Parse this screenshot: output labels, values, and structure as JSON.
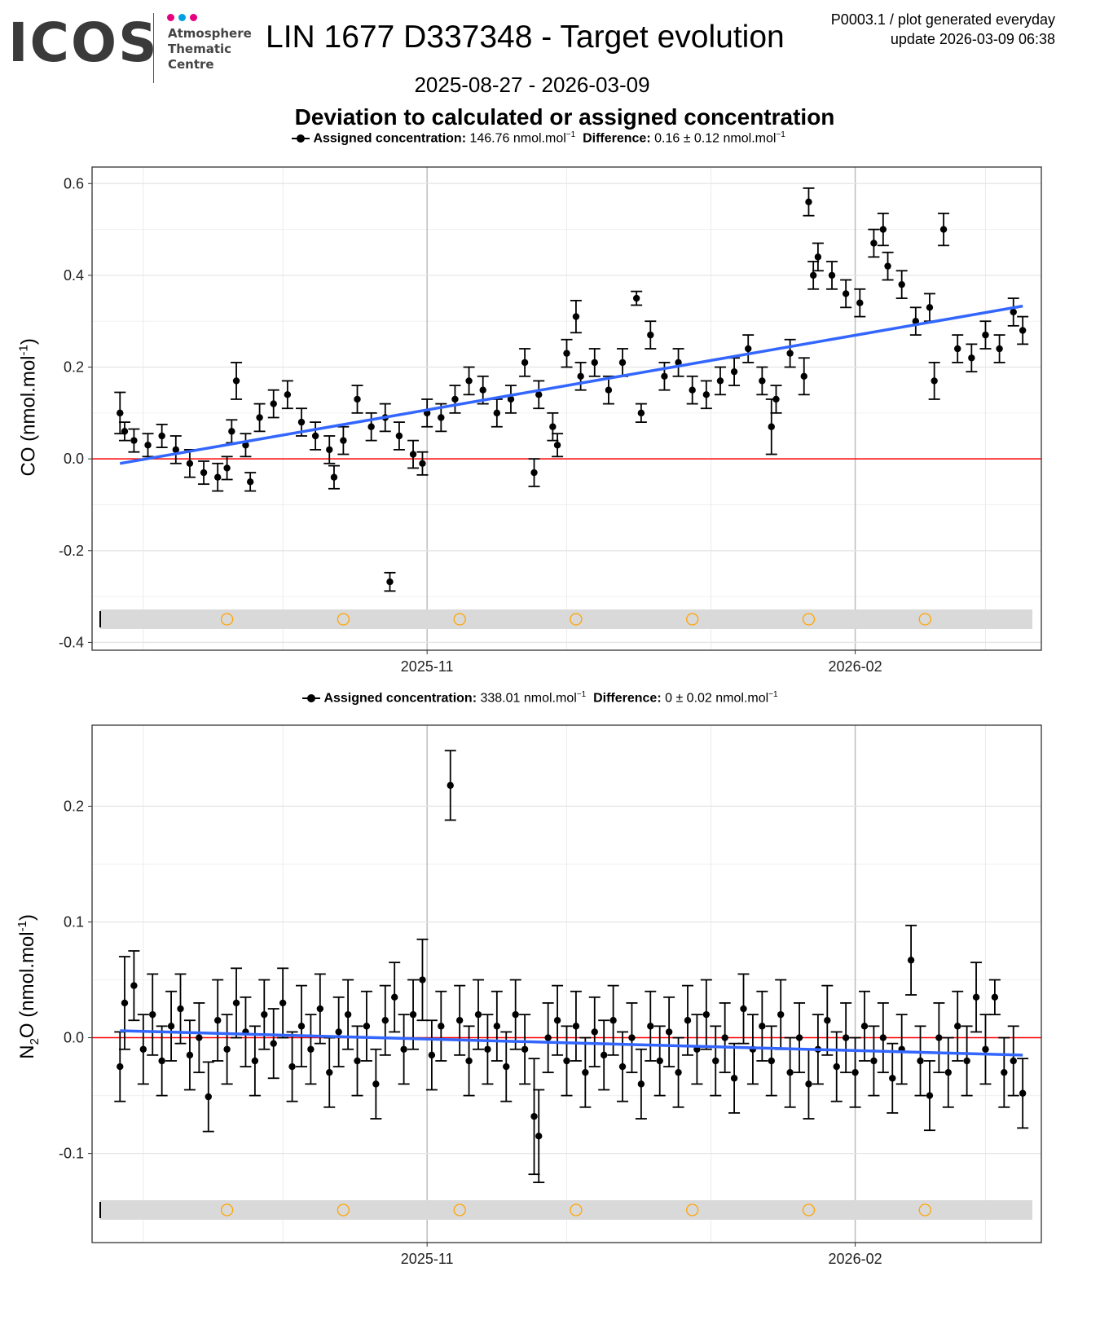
{
  "header": {
    "logo_text": "ICOS",
    "logo_subtitle": "Atmosphere Thematic Centre",
    "logo_dot_colors": [
      "#e6007e",
      "#00a0e3",
      "#e6007e"
    ],
    "title": "LIN 1677 D337348 - Target evolution",
    "meta_line1": "P0003.1 / plot generated everyday",
    "meta_line2": "update  2026-03-09 06:38",
    "date_range": "2025-08-27 - 2026-03-09",
    "subtitle": "Deviation to calculated or assigned concentration"
  },
  "colors": {
    "points": "#000000",
    "trend": "#3366ff",
    "zero_line": "#ff0000",
    "band": "#d9d9d9",
    "markers": "#ffa500"
  },
  "chart_data": [
    {
      "type": "scatter",
      "gas": "CO",
      "ylabel_main": "CO (nmol.mol",
      "ylabel_sup": "-1",
      "ylabel_end": ")",
      "legend": {
        "assigned_label": "Assigned concentration:",
        "assigned_value": "146.76 nmol.mol",
        "diff_label": "Difference:",
        "diff_value": "0.16 ± 0.12 nmol.mol",
        "unit_exp": "−1"
      },
      "ylim": [
        -0.417,
        0.636
      ],
      "xlim": [
        "2025-08-21",
        "2026-03-13"
      ],
      "y_ticks": [
        -0.4,
        -0.2,
        0.0,
        0.2,
        0.4,
        0.6
      ],
      "y_tick_labels": [
        "-0.4",
        "-0.2",
        "0.0",
        "0.2",
        "0.4",
        "0.6"
      ],
      "x_ticks": [
        "2025-11-01",
        "2026-02-01"
      ],
      "x_tick_labels": [
        "2025-11",
        "2026-02"
      ],
      "grid": true,
      "trend": [
        [
          "2025-08-27",
          -0.01
        ],
        [
          "2026-03-09",
          0.333
        ]
      ],
      "band_markers": [
        "2025-09-19",
        "2025-10-14",
        "2025-11-08",
        "2025-12-03",
        "2025-12-28",
        "2026-01-22",
        "2026-02-16"
      ],
      "points": [
        [
          "2025-08-27",
          0.1,
          0.045
        ],
        [
          "2025-08-28",
          0.06,
          0.02
        ],
        [
          "2025-08-30",
          0.04,
          0.025
        ],
        [
          "2025-09-02",
          0.03,
          0.025
        ],
        [
          "2025-09-05",
          0.05,
          0.025
        ],
        [
          "2025-09-08",
          0.02,
          0.03
        ],
        [
          "2025-09-11",
          -0.01,
          0.03
        ],
        [
          "2025-09-14",
          -0.03,
          0.025
        ],
        [
          "2025-09-17",
          -0.04,
          0.03
        ],
        [
          "2025-09-19",
          -0.02,
          0.025
        ],
        [
          "2025-09-20",
          0.06,
          0.025
        ],
        [
          "2025-09-21",
          0.17,
          0.04
        ],
        [
          "2025-09-23",
          0.03,
          0.025
        ],
        [
          "2025-09-24",
          -0.05,
          0.02
        ],
        [
          "2025-09-26",
          0.09,
          0.03
        ],
        [
          "2025-09-29",
          0.12,
          0.03
        ],
        [
          "2025-10-02",
          0.14,
          0.03
        ],
        [
          "2025-10-05",
          0.08,
          0.03
        ],
        [
          "2025-10-08",
          0.05,
          0.03
        ],
        [
          "2025-10-11",
          0.02,
          0.03
        ],
        [
          "2025-10-12",
          -0.04,
          0.025
        ],
        [
          "2025-10-14",
          0.04,
          0.03
        ],
        [
          "2025-10-17",
          0.13,
          0.03
        ],
        [
          "2025-10-20",
          0.07,
          0.03
        ],
        [
          "2025-10-23",
          0.09,
          0.03
        ],
        [
          "2025-10-24",
          -0.268,
          0.02
        ],
        [
          "2025-10-26",
          0.05,
          0.03
        ],
        [
          "2025-10-29",
          0.01,
          0.03
        ],
        [
          "2025-10-31",
          -0.01,
          0.025
        ],
        [
          "2025-11-01",
          0.1,
          0.03
        ],
        [
          "2025-11-04",
          0.09,
          0.03
        ],
        [
          "2025-11-07",
          0.13,
          0.03
        ],
        [
          "2025-11-10",
          0.17,
          0.03
        ],
        [
          "2025-11-13",
          0.15,
          0.03
        ],
        [
          "2025-11-16",
          0.1,
          0.03
        ],
        [
          "2025-11-19",
          0.13,
          0.03
        ],
        [
          "2025-11-22",
          0.21,
          0.03
        ],
        [
          "2025-11-24",
          -0.03,
          0.03
        ],
        [
          "2025-11-25",
          0.14,
          0.03
        ],
        [
          "2025-11-28",
          0.07,
          0.03
        ],
        [
          "2025-11-29",
          0.03,
          0.025
        ],
        [
          "2025-12-01",
          0.23,
          0.03
        ],
        [
          "2025-12-03",
          0.31,
          0.035
        ],
        [
          "2025-12-04",
          0.18,
          0.03
        ],
        [
          "2025-12-07",
          0.21,
          0.03
        ],
        [
          "2025-12-10",
          0.15,
          0.03
        ],
        [
          "2025-12-13",
          0.21,
          0.03
        ],
        [
          "2025-12-16",
          0.35,
          0.015
        ],
        [
          "2025-12-17",
          0.1,
          0.02
        ],
        [
          "2025-12-19",
          0.27,
          0.03
        ],
        [
          "2025-12-22",
          0.18,
          0.03
        ],
        [
          "2025-12-25",
          0.21,
          0.03
        ],
        [
          "2025-12-28",
          0.15,
          0.03
        ],
        [
          "2025-12-31",
          0.14,
          0.03
        ],
        [
          "2026-01-03",
          0.17,
          0.03
        ],
        [
          "2026-01-06",
          0.19,
          0.03
        ],
        [
          "2026-01-09",
          0.24,
          0.03
        ],
        [
          "2026-01-12",
          0.17,
          0.03
        ],
        [
          "2026-01-14",
          0.07,
          0.06
        ],
        [
          "2026-01-15",
          0.13,
          0.03
        ],
        [
          "2026-01-18",
          0.23,
          0.03
        ],
        [
          "2026-01-21",
          0.18,
          0.04
        ],
        [
          "2026-01-22",
          0.56,
          0.03
        ],
        [
          "2026-01-23",
          0.4,
          0.03
        ],
        [
          "2026-01-24",
          0.44,
          0.03
        ],
        [
          "2026-01-27",
          0.4,
          0.03
        ],
        [
          "2026-01-30",
          0.36,
          0.03
        ],
        [
          "2026-02-02",
          0.34,
          0.03
        ],
        [
          "2026-02-05",
          0.47,
          0.03
        ],
        [
          "2026-02-07",
          0.5,
          0.035
        ],
        [
          "2026-02-08",
          0.42,
          0.03
        ],
        [
          "2026-02-11",
          0.38,
          0.03
        ],
        [
          "2026-02-14",
          0.3,
          0.03
        ],
        [
          "2026-02-17",
          0.33,
          0.03
        ],
        [
          "2026-02-18",
          0.17,
          0.04
        ],
        [
          "2026-02-20",
          0.5,
          0.035
        ],
        [
          "2026-02-23",
          0.24,
          0.03
        ],
        [
          "2026-02-26",
          0.22,
          0.03
        ],
        [
          "2026-03-01",
          0.27,
          0.03
        ],
        [
          "2026-03-04",
          0.24,
          0.03
        ],
        [
          "2026-03-07",
          0.32,
          0.03
        ],
        [
          "2026-03-09",
          0.28,
          0.03
        ]
      ]
    },
    {
      "type": "scatter",
      "gas": "N2O",
      "ylabel_main": "N",
      "ylabel_sub": "2",
      "ylabel_mid": "O (nmol.mol",
      "ylabel_sup": "-1",
      "ylabel_end": ")",
      "legend": {
        "assigned_label": "Assigned concentration:",
        "assigned_value": "338.01 nmol.mol",
        "diff_label": "Difference:",
        "diff_value": "0 ± 0.02 nmol.mol",
        "unit_exp": "−1"
      },
      "ylim": [
        -0.177,
        0.27
      ],
      "xlim": [
        "2025-08-21",
        "2026-03-13"
      ],
      "y_ticks": [
        -0.1,
        0.0,
        0.1,
        0.2
      ],
      "y_tick_labels": [
        "-0.1",
        "0.0",
        "0.1",
        "0.2"
      ],
      "x_ticks": [
        "2025-11-01",
        "2026-02-01"
      ],
      "x_tick_labels": [
        "2025-11",
        "2026-02"
      ],
      "grid": true,
      "trend": [
        [
          "2025-08-27",
          0.006
        ],
        [
          "2026-03-09",
          -0.015
        ]
      ],
      "band_markers": [
        "2025-09-19",
        "2025-10-14",
        "2025-11-08",
        "2025-12-03",
        "2025-12-28",
        "2026-01-22",
        "2026-02-16"
      ],
      "points": [
        [
          "2025-08-27",
          -0.025,
          0.03
        ],
        [
          "2025-08-28",
          0.03,
          0.04
        ],
        [
          "2025-08-30",
          0.045,
          0.03
        ],
        [
          "2025-09-01",
          -0.01,
          0.03
        ],
        [
          "2025-09-03",
          0.02,
          0.035
        ],
        [
          "2025-09-05",
          -0.02,
          0.03
        ],
        [
          "2025-09-07",
          0.01,
          0.03
        ],
        [
          "2025-09-09",
          0.025,
          0.03
        ],
        [
          "2025-09-11",
          -0.015,
          0.03
        ],
        [
          "2025-09-13",
          0.0,
          0.03
        ],
        [
          "2025-09-15",
          -0.051,
          0.03
        ],
        [
          "2025-09-17",
          0.015,
          0.035
        ],
        [
          "2025-09-19",
          -0.01,
          0.03
        ],
        [
          "2025-09-21",
          0.03,
          0.03
        ],
        [
          "2025-09-23",
          0.005,
          0.03
        ],
        [
          "2025-09-25",
          -0.02,
          0.03
        ],
        [
          "2025-09-27",
          0.02,
          0.03
        ],
        [
          "2025-09-29",
          -0.005,
          0.03
        ],
        [
          "2025-10-01",
          0.03,
          0.03
        ],
        [
          "2025-10-03",
          -0.025,
          0.03
        ],
        [
          "2025-10-05",
          0.01,
          0.035
        ],
        [
          "2025-10-07",
          -0.01,
          0.03
        ],
        [
          "2025-10-09",
          0.025,
          0.03
        ],
        [
          "2025-10-11",
          -0.03,
          0.03
        ],
        [
          "2025-10-13",
          0.005,
          0.03
        ],
        [
          "2025-10-15",
          0.02,
          0.03
        ],
        [
          "2025-10-17",
          -0.02,
          0.03
        ],
        [
          "2025-10-19",
          0.01,
          0.03
        ],
        [
          "2025-10-21",
          -0.04,
          0.03
        ],
        [
          "2025-10-23",
          0.015,
          0.03
        ],
        [
          "2025-10-25",
          0.035,
          0.03
        ],
        [
          "2025-10-27",
          -0.01,
          0.03
        ],
        [
          "2025-10-29",
          0.02,
          0.03
        ],
        [
          "2025-10-31",
          0.05,
          0.035
        ],
        [
          "2025-11-02",
          -0.015,
          0.03
        ],
        [
          "2025-11-04",
          0.01,
          0.03
        ],
        [
          "2025-11-06",
          0.218,
          0.03
        ],
        [
          "2025-11-08",
          0.015,
          0.03
        ],
        [
          "2025-11-10",
          -0.02,
          0.03
        ],
        [
          "2025-11-12",
          0.02,
          0.03
        ],
        [
          "2025-11-14",
          -0.01,
          0.03
        ],
        [
          "2025-11-16",
          0.01,
          0.03
        ],
        [
          "2025-11-18",
          -0.025,
          0.03
        ],
        [
          "2025-11-20",
          0.02,
          0.03
        ],
        [
          "2025-11-22",
          -0.01,
          0.03
        ],
        [
          "2025-11-24",
          -0.068,
          0.05
        ],
        [
          "2025-11-25",
          -0.085,
          0.04
        ],
        [
          "2025-11-27",
          0.0,
          0.03
        ],
        [
          "2025-11-29",
          0.015,
          0.03
        ],
        [
          "2025-12-01",
          -0.02,
          0.03
        ],
        [
          "2025-12-03",
          0.01,
          0.03
        ],
        [
          "2025-12-05",
          -0.03,
          0.03
        ],
        [
          "2025-12-07",
          0.005,
          0.03
        ],
        [
          "2025-12-09",
          -0.015,
          0.03
        ],
        [
          "2025-12-11",
          0.015,
          0.03
        ],
        [
          "2025-12-13",
          -0.025,
          0.03
        ],
        [
          "2025-12-15",
          0.0,
          0.03
        ],
        [
          "2025-12-17",
          -0.04,
          0.03
        ],
        [
          "2025-12-19",
          0.01,
          0.03
        ],
        [
          "2025-12-21",
          -0.02,
          0.03
        ],
        [
          "2025-12-23",
          0.005,
          0.03
        ],
        [
          "2025-12-25",
          -0.03,
          0.03
        ],
        [
          "2025-12-27",
          0.015,
          0.03
        ],
        [
          "2025-12-29",
          -0.01,
          0.03
        ],
        [
          "2025-12-31",
          0.02,
          0.03
        ],
        [
          "2026-01-02",
          -0.02,
          0.03
        ],
        [
          "2026-01-04",
          0.0,
          0.03
        ],
        [
          "2026-01-06",
          -0.035,
          0.03
        ],
        [
          "2026-01-08",
          0.025,
          0.03
        ],
        [
          "2026-01-10",
          -0.01,
          0.03
        ],
        [
          "2026-01-12",
          0.01,
          0.03
        ],
        [
          "2026-01-14",
          -0.02,
          0.03
        ],
        [
          "2026-01-16",
          0.02,
          0.03
        ],
        [
          "2026-01-18",
          -0.03,
          0.03
        ],
        [
          "2026-01-20",
          0.0,
          0.03
        ],
        [
          "2026-01-22",
          -0.04,
          0.03
        ],
        [
          "2026-01-24",
          -0.01,
          0.03
        ],
        [
          "2026-01-26",
          0.015,
          0.03
        ],
        [
          "2026-01-28",
          -0.025,
          0.03
        ],
        [
          "2026-01-30",
          0.0,
          0.03
        ],
        [
          "2026-02-01",
          -0.03,
          0.03
        ],
        [
          "2026-02-03",
          0.01,
          0.03
        ],
        [
          "2026-02-05",
          -0.02,
          0.03
        ],
        [
          "2026-02-07",
          0.0,
          0.03
        ],
        [
          "2026-02-09",
          -0.035,
          0.03
        ],
        [
          "2026-02-11",
          -0.01,
          0.03
        ],
        [
          "2026-02-13",
          0.067,
          0.03
        ],
        [
          "2026-02-15",
          -0.02,
          0.03
        ],
        [
          "2026-02-17",
          -0.05,
          0.03
        ],
        [
          "2026-02-19",
          0.0,
          0.03
        ],
        [
          "2026-02-21",
          -0.03,
          0.03
        ],
        [
          "2026-02-23",
          0.01,
          0.03
        ],
        [
          "2026-02-25",
          -0.02,
          0.03
        ],
        [
          "2026-02-27",
          0.035,
          0.03
        ],
        [
          "2026-03-01",
          -0.01,
          0.03
        ],
        [
          "2026-03-03",
          0.035,
          0.015
        ],
        [
          "2026-03-05",
          -0.03,
          0.03
        ],
        [
          "2026-03-07",
          -0.02,
          0.03
        ],
        [
          "2026-03-09",
          -0.048,
          0.03
        ]
      ]
    }
  ]
}
